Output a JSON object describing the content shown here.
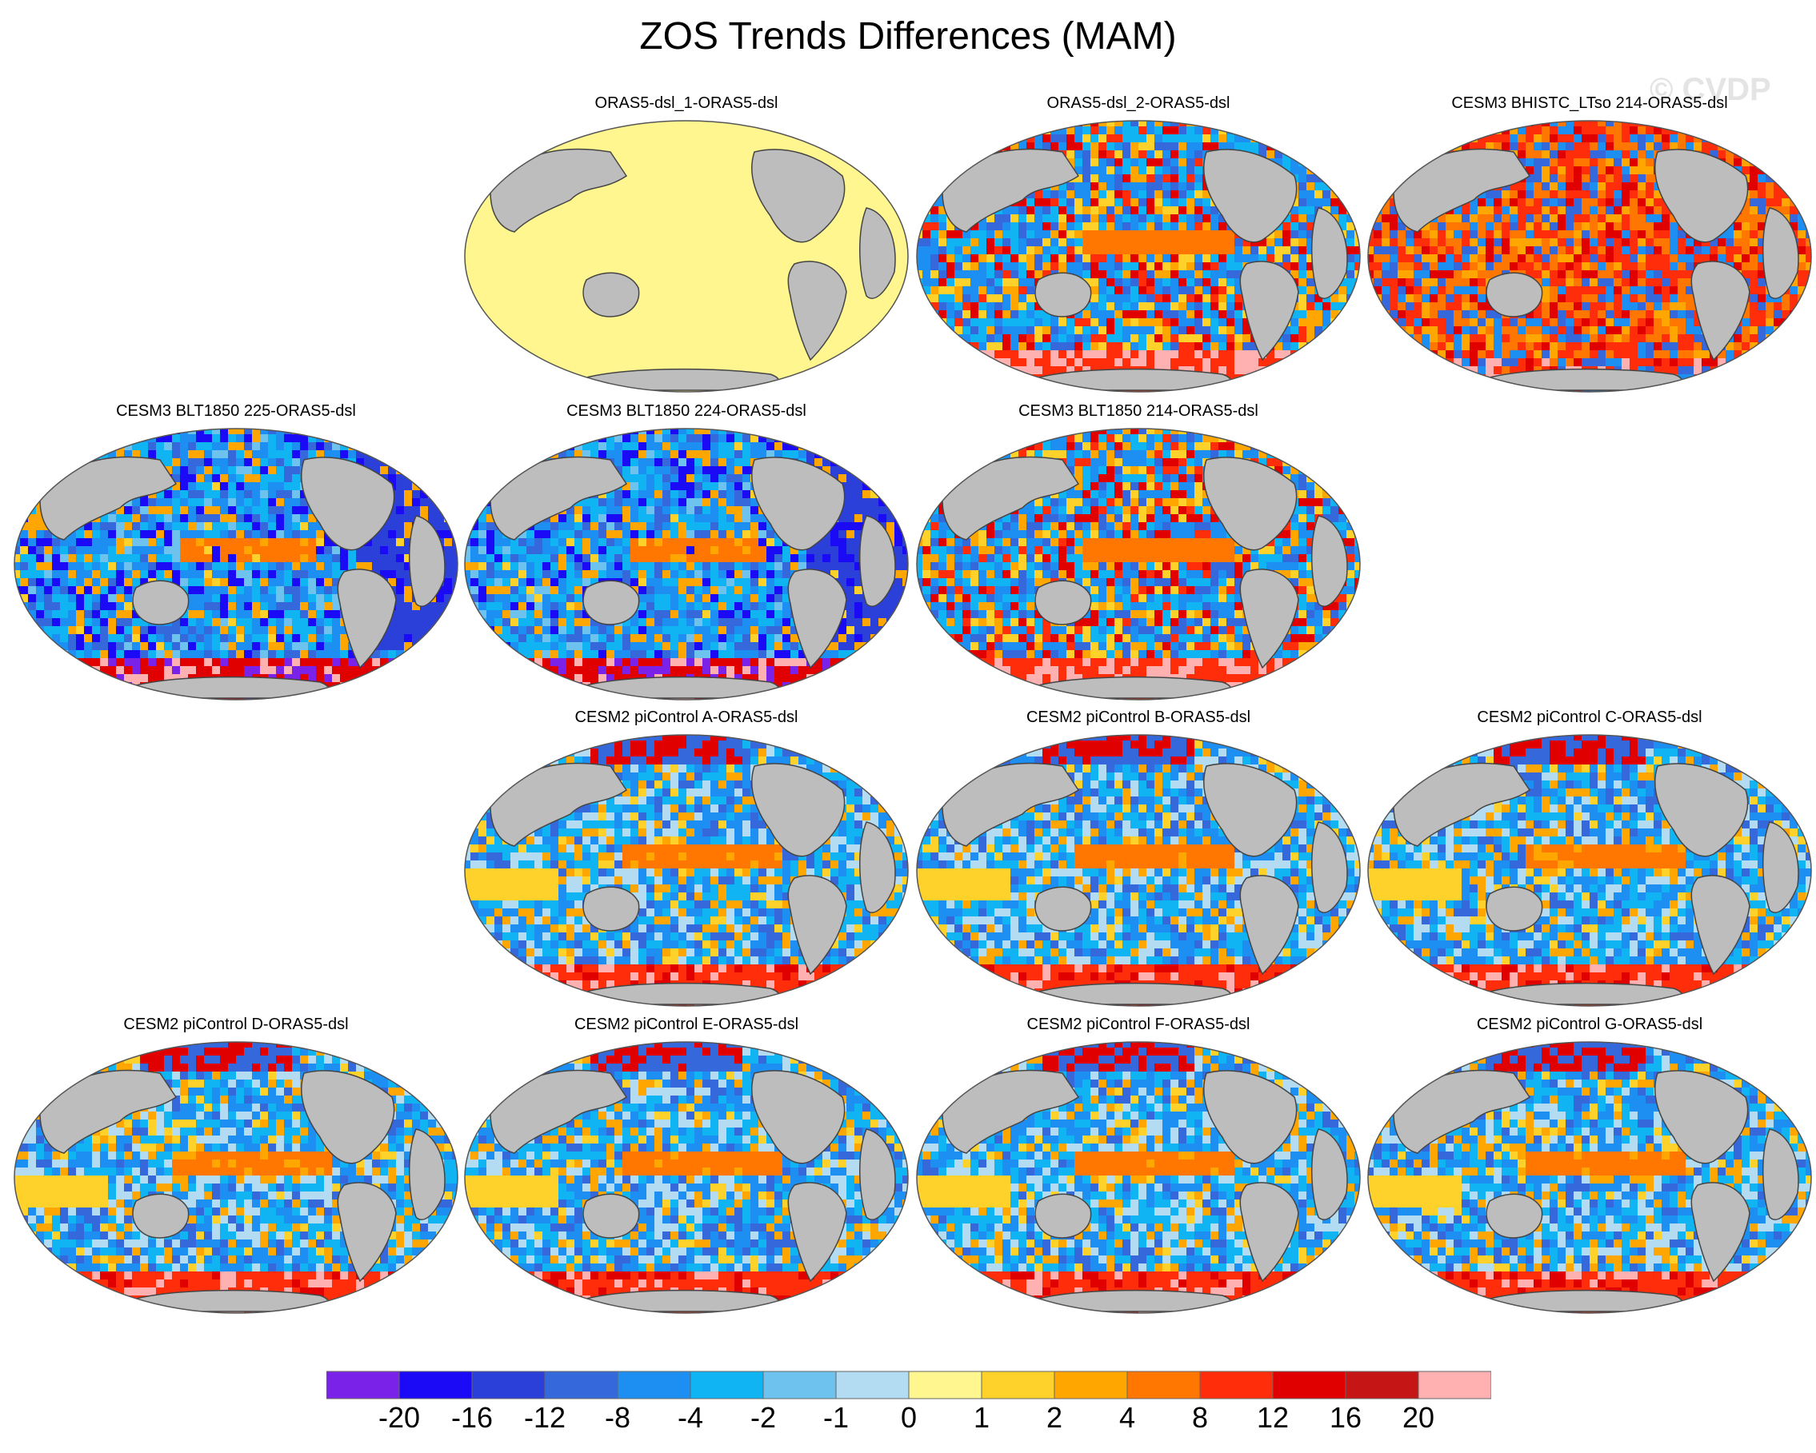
{
  "title": "ZOS Trends Differences (MAM)",
  "watermark": "© CVDP",
  "colors": {
    "ocean_zero": "#fff68f",
    "land": "#bdbdbd",
    "coast": "#444444"
  },
  "colorbar": {
    "colors": [
      "#7b22e8",
      "#1a0af5",
      "#2b3fd9",
      "#3468db",
      "#1e8ff2",
      "#10b4f2",
      "#6ec2ee",
      "#b3dcf2",
      "#fff68f",
      "#ffd12b",
      "#ffa600",
      "#ff7600",
      "#ff2d0a",
      "#e00000",
      "#c61515",
      "#ffb0b0"
    ],
    "labels": [
      "-20",
      "-16",
      "-12",
      "-8",
      "-4",
      "-2",
      "-1",
      "0",
      "1",
      "2",
      "4",
      "8",
      "12",
      "16",
      "20"
    ]
  },
  "panels": [
    {
      "title": "ORAS5-dsl_1-ORAS5-dsl",
      "pattern": "zero"
    },
    {
      "title": "ORAS5-dsl_2-ORAS5-dsl",
      "pattern": "mixed"
    },
    {
      "title": "CESM3 BHISTC_LTso 214-ORAS5-dsl",
      "pattern": "warm"
    },
    {
      "title": "CESM3 BLT1850 225-ORAS5-dsl",
      "pattern": "cold"
    },
    {
      "title": "CESM3 BLT1850 224-ORAS5-dsl",
      "pattern": "cold"
    },
    {
      "title": "CESM3 BLT1850 214-ORAS5-dsl",
      "pattern": "mixed"
    },
    {
      "title": "CESM2 piControl A-ORAS5-dsl",
      "pattern": "pi"
    },
    {
      "title": "CESM2 piControl B-ORAS5-dsl",
      "pattern": "pi"
    },
    {
      "title": "CESM2 piControl C-ORAS5-dsl",
      "pattern": "pi"
    },
    {
      "title": "CESM2 piControl D-ORAS5-dsl",
      "pattern": "pi"
    },
    {
      "title": "CESM2 piControl E-ORAS5-dsl",
      "pattern": "pi"
    },
    {
      "title": "CESM2 piControl F-ORAS5-dsl",
      "pattern": "pi"
    },
    {
      "title": "CESM2 piControl G-ORAS5-dsl",
      "pattern": "pi"
    }
  ]
}
